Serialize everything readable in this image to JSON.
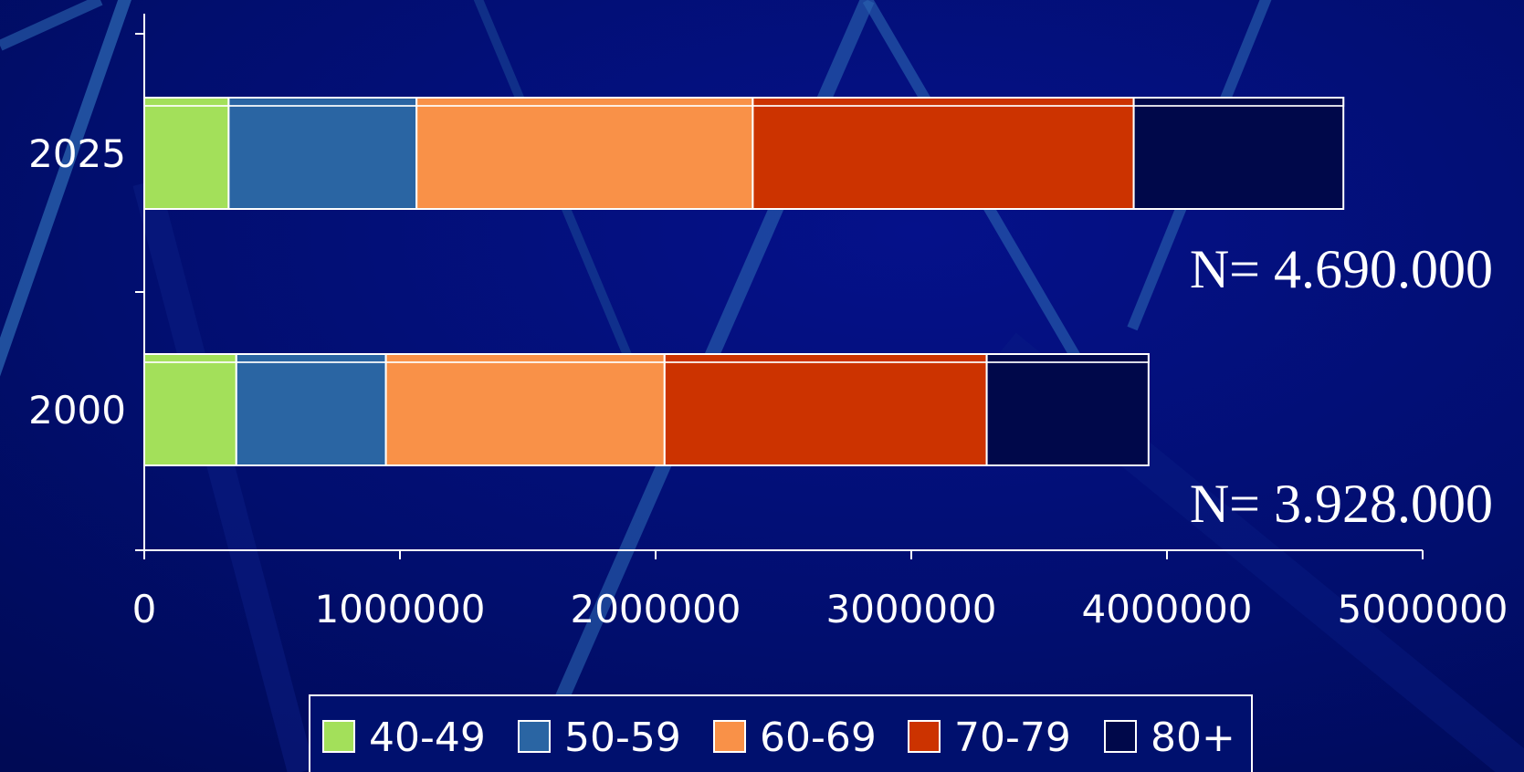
{
  "chart_data": {
    "type": "bar",
    "orientation": "horizontal",
    "stacked": true,
    "categories": [
      "2025",
      "2000"
    ],
    "series": [
      {
        "name": "40-49",
        "color": "#a3e05a",
        "values": [
          330000,
          360000
        ]
      },
      {
        "name": "50-59",
        "color": "#2a65a3",
        "values": [
          735000,
          585000
        ]
      },
      {
        "name": "60-69",
        "color": "#f99148",
        "values": [
          1315000,
          1090000
        ]
      },
      {
        "name": "70-79",
        "color": "#cc3300",
        "values": [
          1490000,
          1260000
        ]
      },
      {
        "name": "80+",
        "color": "#00084a",
        "values": [
          820000,
          633000
        ]
      }
    ],
    "x_ticks": [
      "0",
      "1000000",
      "2000000",
      "3000000",
      "4000000",
      "5000000"
    ],
    "xlim": [
      0,
      5000000
    ],
    "annotations": [
      {
        "category": "2025",
        "text": "N= 4.690.000"
      },
      {
        "category": "2000",
        "text": "N= 3.928.000"
      }
    ],
    "legend_position": "bottom",
    "grid": false
  }
}
